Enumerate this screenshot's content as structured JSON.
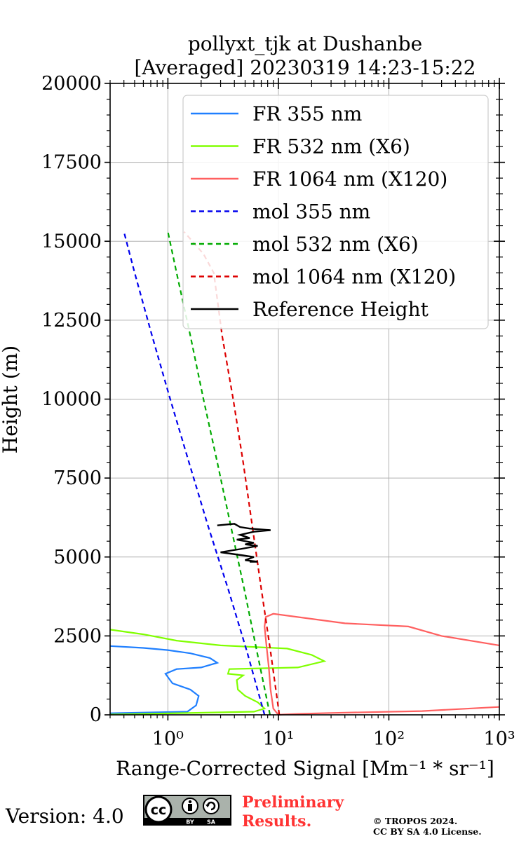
{
  "chart_data": {
    "type": "line",
    "title_line1": "pollyxt_tjk at Dushanbe",
    "title_line2": "[Averaged] 20230319 14:23-15:22",
    "xlabel": "Range-Corrected Signal [Mm⁻¹ * sr⁻¹]",
    "ylabel": "Height (m)",
    "xscale": "log",
    "xlim": [
      0.3,
      1000
    ],
    "ylim": [
      0,
      20000
    ],
    "yticks": [
      "0",
      "2500",
      "5000",
      "7500",
      "10000",
      "12500",
      "15000",
      "17500",
      "20000"
    ],
    "xticks": [
      "10⁰",
      "10¹",
      "10²",
      "10³"
    ],
    "grid": true,
    "legend_position": "top-right",
    "legend": [
      "FR 355 nm",
      "FR 532 nm (X6)",
      "FR 1064 nm (X120)",
      "mol 355 nm",
      "mol 532 nm (X6)",
      "mol 1064 nm (X120)",
      "Reference Height"
    ],
    "series": [
      {
        "name": "FR 355 nm",
        "color": "#1f7fff",
        "style": "solid",
        "points": [
          [
            0.3,
            50
          ],
          [
            1.5,
            100
          ],
          [
            1.8,
            300
          ],
          [
            1.9,
            600
          ],
          [
            1.6,
            800
          ],
          [
            1.1,
            1000
          ],
          [
            0.95,
            1300
          ],
          [
            1.2,
            1450
          ],
          [
            2.0,
            1500
          ],
          [
            2.8,
            1650
          ],
          [
            2.4,
            1800
          ],
          [
            1.6,
            1950
          ],
          [
            1.0,
            2050
          ],
          [
            0.6,
            2120
          ],
          [
            0.3,
            2180
          ]
        ]
      },
      {
        "name": "FR 532 nm (X6)",
        "color": "#80ff00",
        "style": "solid",
        "points": [
          [
            0.3,
            10
          ],
          [
            6,
            100
          ],
          [
            7.5,
            200
          ],
          [
            6.5,
            400
          ],
          [
            5.0,
            600
          ],
          [
            4.3,
            800
          ],
          [
            4.2,
            1100
          ],
          [
            4.8,
            1250
          ],
          [
            3.5,
            1300
          ],
          [
            3.6,
            1450
          ],
          [
            15,
            1500
          ],
          [
            26,
            1700
          ],
          [
            20,
            1900
          ],
          [
            12,
            2100
          ],
          [
            3,
            2200
          ],
          [
            1.2,
            2350
          ],
          [
            0.6,
            2550
          ],
          [
            0.3,
            2700
          ]
        ]
      },
      {
        "name": "FR 1064 nm (X120)",
        "color": "#ff6060",
        "style": "solid",
        "points": [
          [
            1000,
            250
          ],
          [
            200,
            120
          ],
          [
            30,
            60
          ],
          [
            15,
            30
          ],
          [
            11,
            10
          ],
          [
            10,
            0
          ],
          [
            9,
            200
          ],
          [
            8.5,
            800
          ],
          [
            8.2,
            1500
          ],
          [
            7.8,
            2200
          ],
          [
            7.5,
            2800
          ],
          [
            7.7,
            3100
          ],
          [
            9,
            3200
          ],
          [
            40,
            2900
          ],
          [
            150,
            2800
          ],
          [
            300,
            2500
          ],
          [
            1000,
            2200
          ]
        ]
      },
      {
        "name": "mol 355 nm",
        "color": "#0000ee",
        "style": "dashed",
        "points": [
          [
            7.5,
            0
          ],
          [
            5.2,
            2000
          ],
          [
            3.5,
            4000
          ],
          [
            2.3,
            6000
          ],
          [
            1.55,
            8000
          ],
          [
            1.05,
            10000
          ],
          [
            0.72,
            12000
          ],
          [
            0.5,
            14000
          ],
          [
            0.4,
            15300
          ]
        ]
      },
      {
        "name": "mol 532 nm (X6)",
        "color": "#00aa00",
        "style": "dashed",
        "points": [
          [
            8.4,
            0
          ],
          [
            6.4,
            2000
          ],
          [
            4.9,
            4000
          ],
          [
            3.7,
            6000
          ],
          [
            2.8,
            8000
          ],
          [
            2.1,
            10000
          ],
          [
            1.6,
            12000
          ],
          [
            1.2,
            14000
          ],
          [
            1.0,
            15300
          ]
        ]
      },
      {
        "name": "mol 1064 nm (X120)",
        "color": "#dd0000",
        "style": "dashed",
        "points": [
          [
            10.2,
            0
          ],
          [
            8.5,
            2000
          ],
          [
            7.0,
            4000
          ],
          [
            5.8,
            6000
          ],
          [
            4.8,
            8000
          ],
          [
            3.9,
            10000
          ],
          [
            3.1,
            12000
          ],
          [
            2.6,
            14000
          ],
          [
            2.1,
            14600
          ],
          [
            1.4,
            15300
          ]
        ]
      },
      {
        "name": "Reference Height",
        "color": "#000000",
        "style": "solid",
        "points": [
          [
            2.8,
            6000
          ],
          [
            4.0,
            6050
          ],
          [
            4.5,
            5950
          ],
          [
            5.5,
            5900
          ],
          [
            8.5,
            5850
          ],
          [
            6.0,
            5800
          ],
          [
            4.5,
            5700
          ],
          [
            5.5,
            5600
          ],
          [
            4.2,
            5550
          ],
          [
            6.0,
            5450
          ],
          [
            5.0,
            5400
          ],
          [
            6.5,
            5350
          ],
          [
            4.5,
            5250
          ],
          [
            3.0,
            5150
          ],
          [
            4.8,
            5050
          ],
          [
            6.0,
            5000
          ],
          [
            5.0,
            4900
          ],
          [
            6.5,
            4850
          ],
          [
            5.5,
            4850
          ]
        ]
      }
    ]
  },
  "footer": {
    "version": "Version: 4.0",
    "cc_label": "cc",
    "by_label": "BY",
    "sa_label": "SA",
    "preliminary_line1": "Preliminary",
    "preliminary_line2": "Results.",
    "copyright_line1": "© TROPOS 2024.",
    "copyright_line2": "CC BY SA 4.0 License."
  }
}
